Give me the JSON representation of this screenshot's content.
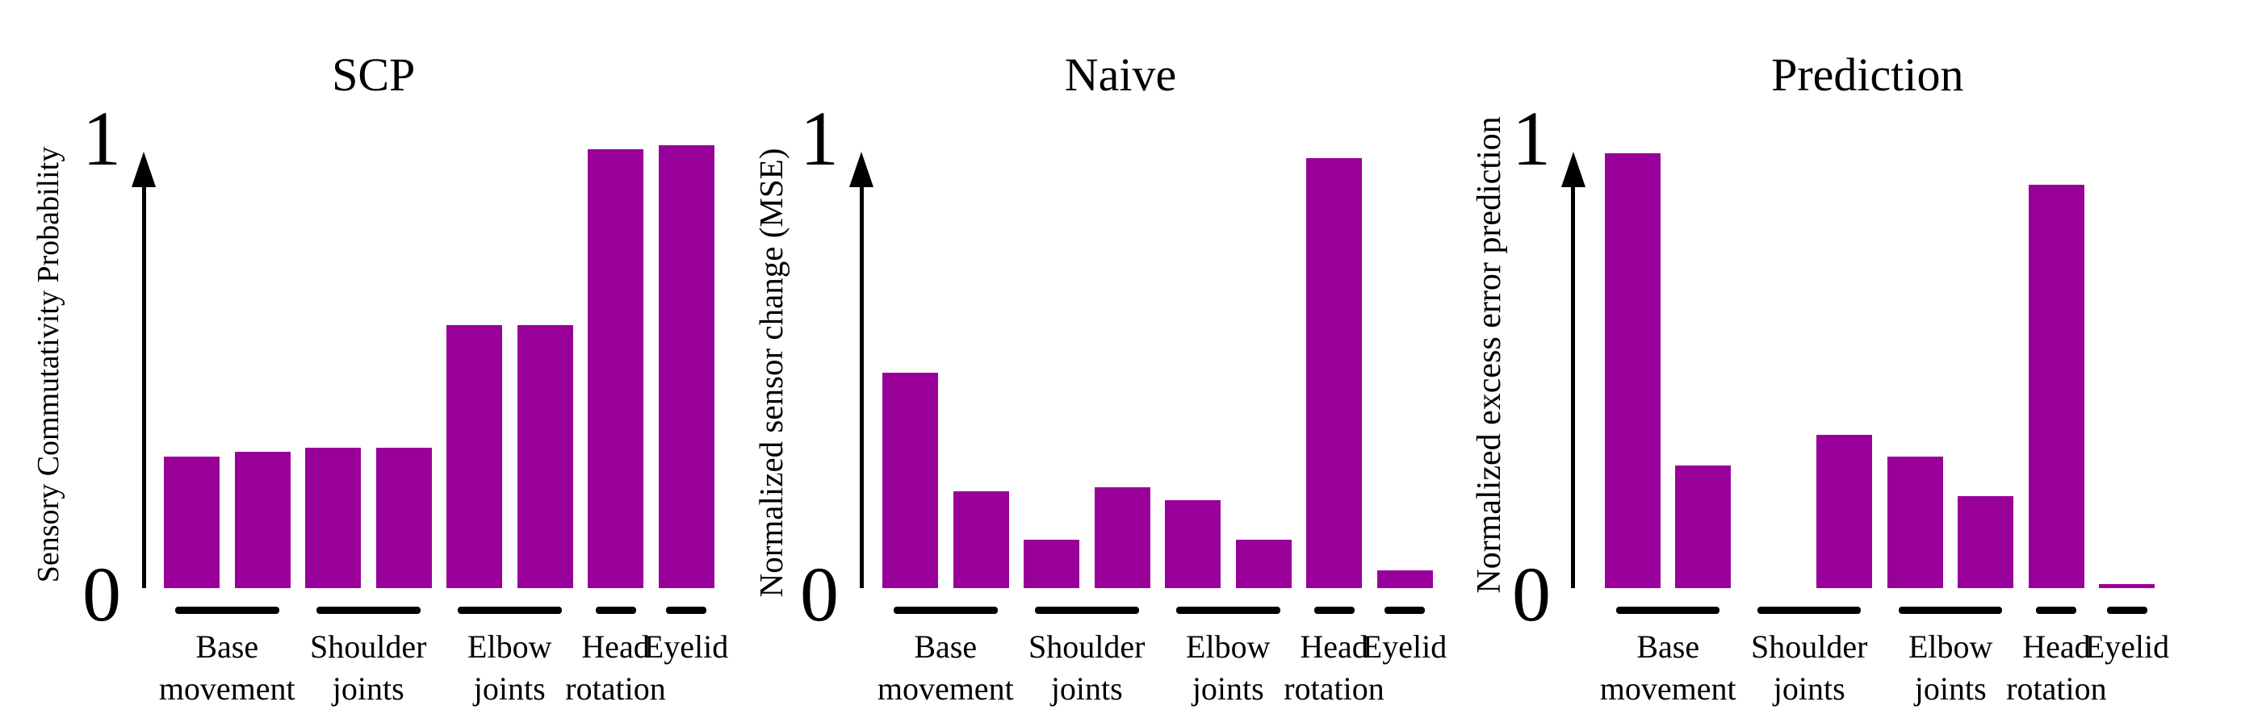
{
  "figure": {
    "background": "#ffffff",
    "bar_color": "#990099",
    "axis_color": "#000000",
    "y_tick_top": "1",
    "y_tick_bottom": "0"
  },
  "chart_data": [
    {
      "type": "bar",
      "title": "SCP",
      "ylabel": "Sensory Commutativity Probability",
      "xlabel": "",
      "ylim": [
        0,
        1
      ],
      "y_tick_labels": [
        "0",
        "1"
      ],
      "grid": false,
      "legend": null,
      "bar_color": "#990099",
      "categories": [
        "Base movement",
        "Base movement",
        "Shoulder joints",
        "Shoulder joints",
        "Elbow joints",
        "Elbow joints",
        "Head rotation",
        "Eyelid"
      ],
      "values": [
        0.3,
        0.31,
        0.32,
        0.32,
        0.6,
        0.6,
        1.0,
        1.01
      ],
      "groups": [
        {
          "label_lines": [
            "Base",
            "movement"
          ],
          "bars": [
            0,
            1
          ]
        },
        {
          "label_lines": [
            "Shoulder",
            "joints"
          ],
          "bars": [
            2,
            3
          ]
        },
        {
          "label_lines": [
            "Elbow",
            "joints"
          ],
          "bars": [
            4,
            5
          ]
        },
        {
          "label_lines": [
            "Head",
            "rotation"
          ],
          "bars": [
            6
          ]
        },
        {
          "label_lines": [
            "Eyelid"
          ],
          "bars": [
            7
          ]
        }
      ]
    },
    {
      "type": "bar",
      "title": "Naive",
      "ylabel": "Normalized sensor change (MSE)",
      "xlabel": "",
      "ylim": [
        0,
        1
      ],
      "y_tick_labels": [
        "0",
        "1"
      ],
      "grid": false,
      "legend": null,
      "bar_color": "#990099",
      "categories": [
        "Base movement",
        "Base movement",
        "Shoulder joints",
        "Shoulder joints",
        "Elbow joints",
        "Elbow joints",
        "Head rotation",
        "Eyelid"
      ],
      "values": [
        0.49,
        0.22,
        0.11,
        0.23,
        0.2,
        0.11,
        0.98,
        0.04
      ],
      "groups": [
        {
          "label_lines": [
            "Base",
            "movement"
          ],
          "bars": [
            0,
            1
          ]
        },
        {
          "label_lines": [
            "Shoulder",
            "joints"
          ],
          "bars": [
            2,
            3
          ]
        },
        {
          "label_lines": [
            "Elbow",
            "joints"
          ],
          "bars": [
            4,
            5
          ]
        },
        {
          "label_lines": [
            "Head",
            "rotation"
          ],
          "bars": [
            6
          ]
        },
        {
          "label_lines": [
            "Eyelid"
          ],
          "bars": [
            7
          ]
        }
      ]
    },
    {
      "type": "bar",
      "title": "Prediction",
      "ylabel": "Normalized excess error prediction",
      "xlabel": "",
      "ylim": [
        0,
        1
      ],
      "y_tick_labels": [
        "0",
        "1"
      ],
      "grid": false,
      "legend": null,
      "bar_color": "#990099",
      "categories": [
        "Base movement",
        "Base movement",
        "Shoulder joints",
        "Shoulder joints",
        "Elbow joints",
        "Elbow joints",
        "Head rotation",
        "Eyelid"
      ],
      "values": [
        0.99,
        0.28,
        0.0,
        0.35,
        0.3,
        0.21,
        0.92,
        0.01
      ],
      "groups": [
        {
          "label_lines": [
            "Base",
            "movement"
          ],
          "bars": [
            0,
            1
          ]
        },
        {
          "label_lines": [
            "Shoulder",
            "joints"
          ],
          "bars": [
            2,
            3
          ]
        },
        {
          "label_lines": [
            "Elbow",
            "joints"
          ],
          "bars": [
            4,
            5
          ]
        },
        {
          "label_lines": [
            "Head",
            "rotation"
          ],
          "bars": [
            6
          ]
        },
        {
          "label_lines": [
            "Eyelid"
          ],
          "bars": [
            7
          ]
        }
      ]
    }
  ]
}
